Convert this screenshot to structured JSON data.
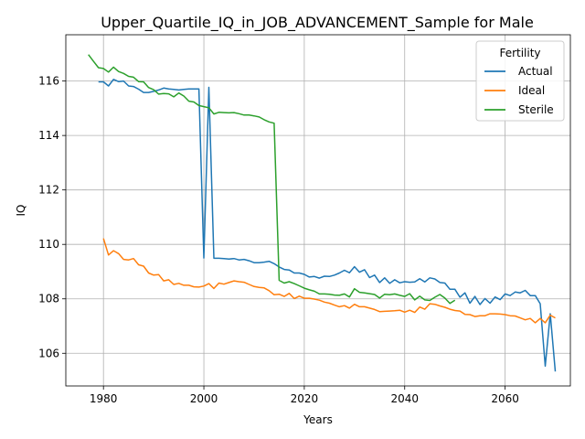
{
  "chart_data": {
    "type": "line",
    "title": "Upper_Quartile_IQ_in_JOB_ADVANCEMENT_Sample for Male",
    "xlabel": "Years",
    "ylabel": "IQ",
    "xlim": [
      1972.5,
      2073
    ],
    "ylim": [
      104.8,
      117.7
    ],
    "xticks": [
      1980,
      2000,
      2020,
      2040,
      2060
    ],
    "yticks": [
      106,
      108,
      110,
      112,
      114,
      116
    ],
    "grid": true,
    "legend": {
      "title": "Fertility",
      "position": "top-right"
    },
    "series": [
      {
        "name": "Actual",
        "color": "#1f77b4",
        "x": [
          1979,
          1980,
          1981,
          1982,
          1983,
          1984,
          1985,
          1986,
          1987,
          1988,
          1989,
          1990,
          1991,
          1992,
          1993,
          1994,
          1995,
          1996,
          1997,
          1998,
          1999,
          2000,
          2001,
          2002,
          2003,
          2004,
          2005,
          2006,
          2007,
          2008,
          2009,
          2010,
          2011,
          2012,
          2013,
          2014,
          2015,
          2016,
          2017,
          2018,
          2019,
          2020,
          2021,
          2022,
          2023,
          2024,
          2025,
          2026,
          2027,
          2028,
          2029,
          2030,
          2031,
          2032,
          2033,
          2034,
          2035,
          2036,
          2037,
          2038,
          2039,
          2040,
          2041,
          2042,
          2043,
          2044,
          2045,
          2046,
          2047,
          2048,
          2049,
          2050,
          2051,
          2052,
          2053,
          2054,
          2055,
          2056,
          2057,
          2058,
          2059,
          2060,
          2061,
          2062,
          2063,
          2064,
          2065,
          2066,
          2067,
          2068,
          2069,
          2070
        ],
        "y": [
          115.97,
          115.97,
          115.82,
          116.06,
          115.98,
          116.0,
          115.82,
          115.8,
          115.7,
          115.58,
          115.58,
          115.62,
          115.67,
          115.74,
          115.71,
          115.69,
          115.67,
          115.69,
          115.71,
          115.71,
          115.71,
          109.5,
          115.77,
          109.49,
          109.49,
          109.48,
          109.46,
          109.48,
          109.43,
          109.45,
          109.4,
          109.33,
          109.33,
          109.35,
          109.38,
          109.29,
          109.17,
          109.08,
          109.06,
          108.95,
          108.95,
          108.9,
          108.8,
          108.82,
          108.76,
          108.83,
          108.82,
          108.87,
          108.95,
          109.05,
          108.96,
          109.18,
          108.98,
          109.07,
          108.78,
          108.87,
          108.6,
          108.77,
          108.57,
          108.7,
          108.59,
          108.63,
          108.61,
          108.62,
          108.74,
          108.62,
          108.77,
          108.73,
          108.6,
          108.58,
          108.35,
          108.35,
          108.06,
          108.22,
          107.84,
          108.09,
          107.79,
          108.01,
          107.84,
          108.07,
          107.97,
          108.18,
          108.12,
          108.25,
          108.22,
          108.31,
          108.12,
          108.12,
          107.82,
          105.53,
          107.45,
          105.33
        ]
      },
      {
        "name": "Ideal",
        "color": "#ff7f0e",
        "x": [
          1980,
          1981,
          1982,
          1983,
          1984,
          1985,
          1986,
          1987,
          1988,
          1989,
          1990,
          1991,
          1992,
          1993,
          1994,
          1995,
          1996,
          1997,
          1998,
          1999,
          2000,
          2001,
          2002,
          2003,
          2004,
          2005,
          2006,
          2007,
          2008,
          2009,
          2010,
          2011,
          2012,
          2013,
          2014,
          2015,
          2016,
          2017,
          2018,
          2019,
          2020,
          2021,
          2022,
          2023,
          2024,
          2025,
          2026,
          2027,
          2028,
          2029,
          2030,
          2031,
          2032,
          2033,
          2034,
          2035,
          2036,
          2037,
          2038,
          2039,
          2040,
          2041,
          2042,
          2043,
          2044,
          2045,
          2046,
          2047,
          2048,
          2049,
          2050,
          2051,
          2052,
          2053,
          2054,
          2055,
          2056,
          2057,
          2058,
          2059,
          2060,
          2061,
          2062,
          2063,
          2064,
          2065,
          2066,
          2067,
          2068,
          2069,
          2070
        ],
        "y": [
          110.22,
          109.61,
          109.77,
          109.66,
          109.45,
          109.43,
          109.48,
          109.25,
          109.2,
          108.95,
          108.87,
          108.89,
          108.66,
          108.7,
          108.53,
          108.57,
          108.5,
          108.5,
          108.44,
          108.43,
          108.47,
          108.56,
          108.38,
          108.58,
          108.54,
          108.6,
          108.66,
          108.63,
          108.61,
          108.53,
          108.45,
          108.42,
          108.4,
          108.3,
          108.15,
          108.17,
          108.09,
          108.2,
          108.01,
          108.1,
          108.02,
          108.02,
          107.99,
          107.95,
          107.88,
          107.84,
          107.77,
          107.71,
          107.75,
          107.66,
          107.8,
          107.71,
          107.71,
          107.66,
          107.61,
          107.53,
          107.54,
          107.55,
          107.56,
          107.58,
          107.51,
          107.58,
          107.5,
          107.7,
          107.62,
          107.82,
          107.8,
          107.74,
          107.69,
          107.62,
          107.57,
          107.55,
          107.43,
          107.42,
          107.35,
          107.38,
          107.38,
          107.45,
          107.45,
          107.44,
          107.42,
          107.38,
          107.37,
          107.3,
          107.23,
          107.28,
          107.12,
          107.28,
          107.12,
          107.4,
          107.3
        ]
      },
      {
        "name": "Sterile",
        "color": "#2ca02c",
        "x": [
          1977,
          1978,
          1979,
          1980,
          1981,
          1982,
          1983,
          1984,
          1985,
          1986,
          1987,
          1988,
          1989,
          1990,
          1991,
          1992,
          1993,
          1994,
          1995,
          1996,
          1997,
          1998,
          1999,
          2000,
          2001,
          2002,
          2003,
          2004,
          2005,
          2006,
          2007,
          2008,
          2009,
          2010,
          2011,
          2012,
          2013,
          2014,
          2015,
          2016,
          2017,
          2018,
          2019,
          2020,
          2021,
          2022,
          2023,
          2024,
          2025,
          2026,
          2027,
          2028,
          2029,
          2030,
          2031,
          2032,
          2033,
          2034,
          2035,
          2036,
          2037,
          2038,
          2039,
          2040,
          2041,
          2042,
          2043,
          2044,
          2045,
          2046,
          2047,
          2048,
          2049,
          2050
        ],
        "y": [
          116.97,
          116.73,
          116.49,
          116.46,
          116.33,
          116.51,
          116.35,
          116.28,
          116.17,
          116.14,
          115.98,
          115.97,
          115.76,
          115.68,
          115.52,
          115.54,
          115.53,
          115.42,
          115.56,
          115.45,
          115.26,
          115.23,
          115.1,
          115.06,
          115.02,
          114.79,
          114.85,
          114.84,
          114.83,
          114.84,
          114.8,
          114.75,
          114.75,
          114.72,
          114.68,
          114.58,
          114.5,
          114.45,
          108.68,
          108.58,
          108.63,
          108.56,
          108.48,
          108.39,
          108.33,
          108.28,
          108.18,
          108.18,
          108.17,
          108.14,
          108.13,
          108.18,
          108.07,
          108.37,
          108.24,
          108.22,
          108.19,
          108.16,
          108.03,
          108.17,
          108.15,
          108.18,
          108.13,
          108.09,
          108.19,
          107.96,
          108.1,
          107.96,
          107.94,
          108.06,
          108.16,
          108.03,
          107.83,
          107.95
        ]
      }
    ]
  }
}
